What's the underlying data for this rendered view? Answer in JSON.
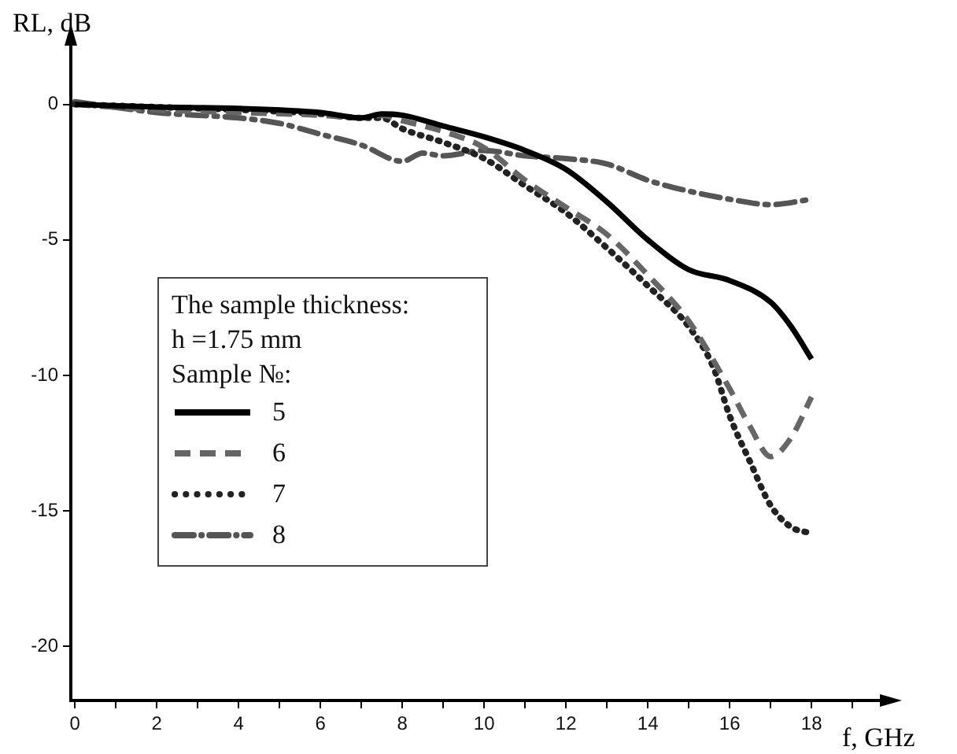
{
  "chart_data": {
    "type": "line",
    "xlabel": "f, GHz",
    "ylabel": "RL, dB",
    "legend_title": "The sample thickness:\nh =1.75 mm\nSample №:",
    "legend": "left",
    "grid": false,
    "marker": "none",
    "xlim": [
      -0.1,
      19.9
    ],
    "ylim": [
      -22,
      2.4
    ],
    "xticks": [
      0,
      {
        "value": 1,
        "label": null
      },
      2,
      {
        "value": 3,
        "label": null
      },
      4,
      {
        "value": 5,
        "label": null
      },
      6,
      {
        "value": 7,
        "label": null
      },
      8,
      {
        "value": 9,
        "label": null
      },
      10,
      {
        "value": 11,
        "label": null
      },
      12,
      {
        "value": 13,
        "label": null
      },
      14,
      {
        "value": 15,
        "label": null
      },
      16,
      {
        "value": 17,
        "label": null
      },
      18,
      {
        "value": 19,
        "label": null
      }
    ],
    "yticks": [
      -20,
      -15,
      -10,
      -5,
      0
    ],
    "series": [
      {
        "name": "5",
        "color": "#000000",
        "line_style": "solid",
        "x": [
          0,
          2,
          4,
          6,
          7,
          7.5,
          8,
          9,
          10,
          11,
          12,
          13,
          14,
          15,
          16,
          17,
          17.5,
          18
        ],
        "values": [
          0,
          -0.1,
          -0.15,
          -0.3,
          -0.5,
          -0.35,
          -0.4,
          -0.8,
          -1.2,
          -1.7,
          -2.4,
          -3.6,
          -5.0,
          -6.1,
          -6.5,
          -7.3,
          -8.2,
          -9.4
        ]
      },
      {
        "name": "6",
        "color": "#666666",
        "line_style": "dashed",
        "x": [
          0,
          2,
          4,
          6,
          7,
          7.5,
          8,
          9,
          10,
          11,
          12,
          13,
          14,
          15,
          16,
          16.5,
          17,
          17.5,
          18
        ],
        "values": [
          0,
          -0.2,
          -0.3,
          -0.4,
          -0.5,
          -0.4,
          -0.6,
          -1.0,
          -1.6,
          -2.8,
          -3.8,
          -4.8,
          -6.3,
          -8.0,
          -10.5,
          -11.9,
          -13.0,
          -12.3,
          -10.8
        ]
      },
      {
        "name": "7",
        "color": "#222222",
        "line_style": "dotted",
        "x": [
          0,
          2,
          4,
          6,
          7,
          7.5,
          8,
          9,
          10,
          11,
          12,
          13,
          14,
          15,
          15.6,
          16,
          16.5,
          17,
          17.5,
          17.9
        ],
        "values": [
          0,
          -0.1,
          -0.2,
          -0.35,
          -0.5,
          -0.5,
          -0.9,
          -1.4,
          -2.0,
          -3.0,
          -4.0,
          -5.3,
          -6.7,
          -8.2,
          -9.7,
          -11.5,
          -13.2,
          -14.8,
          -15.6,
          -15.8
        ]
      },
      {
        "name": "8",
        "color": "#555555",
        "line_style": "dashdot",
        "x": [
          0,
          2,
          4,
          5,
          6,
          7,
          8,
          8.5,
          9,
          10,
          11,
          12,
          13,
          14,
          15,
          16,
          17,
          18
        ],
        "values": [
          0.1,
          -0.3,
          -0.5,
          -0.7,
          -1.1,
          -1.5,
          -2.1,
          -1.8,
          -1.9,
          -1.7,
          -1.9,
          -2.0,
          -2.2,
          -2.8,
          -3.2,
          -3.5,
          -3.7,
          -3.5
        ]
      }
    ]
  }
}
